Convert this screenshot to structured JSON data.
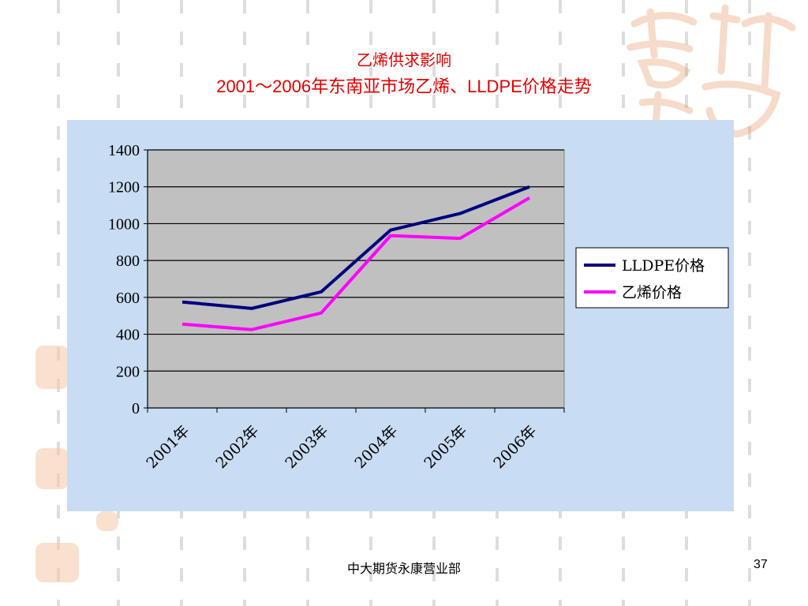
{
  "slide": {
    "title_line1": "乙烯供求影响",
    "title_line2": "2001～2006年东南亚市场乙烯、LLDPE价格走势",
    "footer_text": "中大期货永康营业部",
    "page_number": "37"
  },
  "colors": {
    "title": "#e60000",
    "panel_bg": "#c8dcf3",
    "plot_bg": "#c0c0c0",
    "lldpe": "#000080",
    "ethylene": "#ff00ff"
  },
  "chart_data": {
    "type": "line",
    "categories": [
      "2001年",
      "2002年",
      "2003年",
      "2004年",
      "2005年",
      "2006年"
    ],
    "series": [
      {
        "name": "LLDPE价格",
        "values": [
          575,
          540,
          630,
          965,
          1055,
          1200
        ]
      },
      {
        "name": "乙烯价格",
        "values": [
          455,
          425,
          515,
          935,
          920,
          1140
        ]
      }
    ],
    "ylim": [
      0,
      1400
    ],
    "yticks": [
      "0",
      "200",
      "400",
      "600",
      "800",
      "1000",
      "1200",
      "1400"
    ],
    "grid": true,
    "legend": "right"
  }
}
